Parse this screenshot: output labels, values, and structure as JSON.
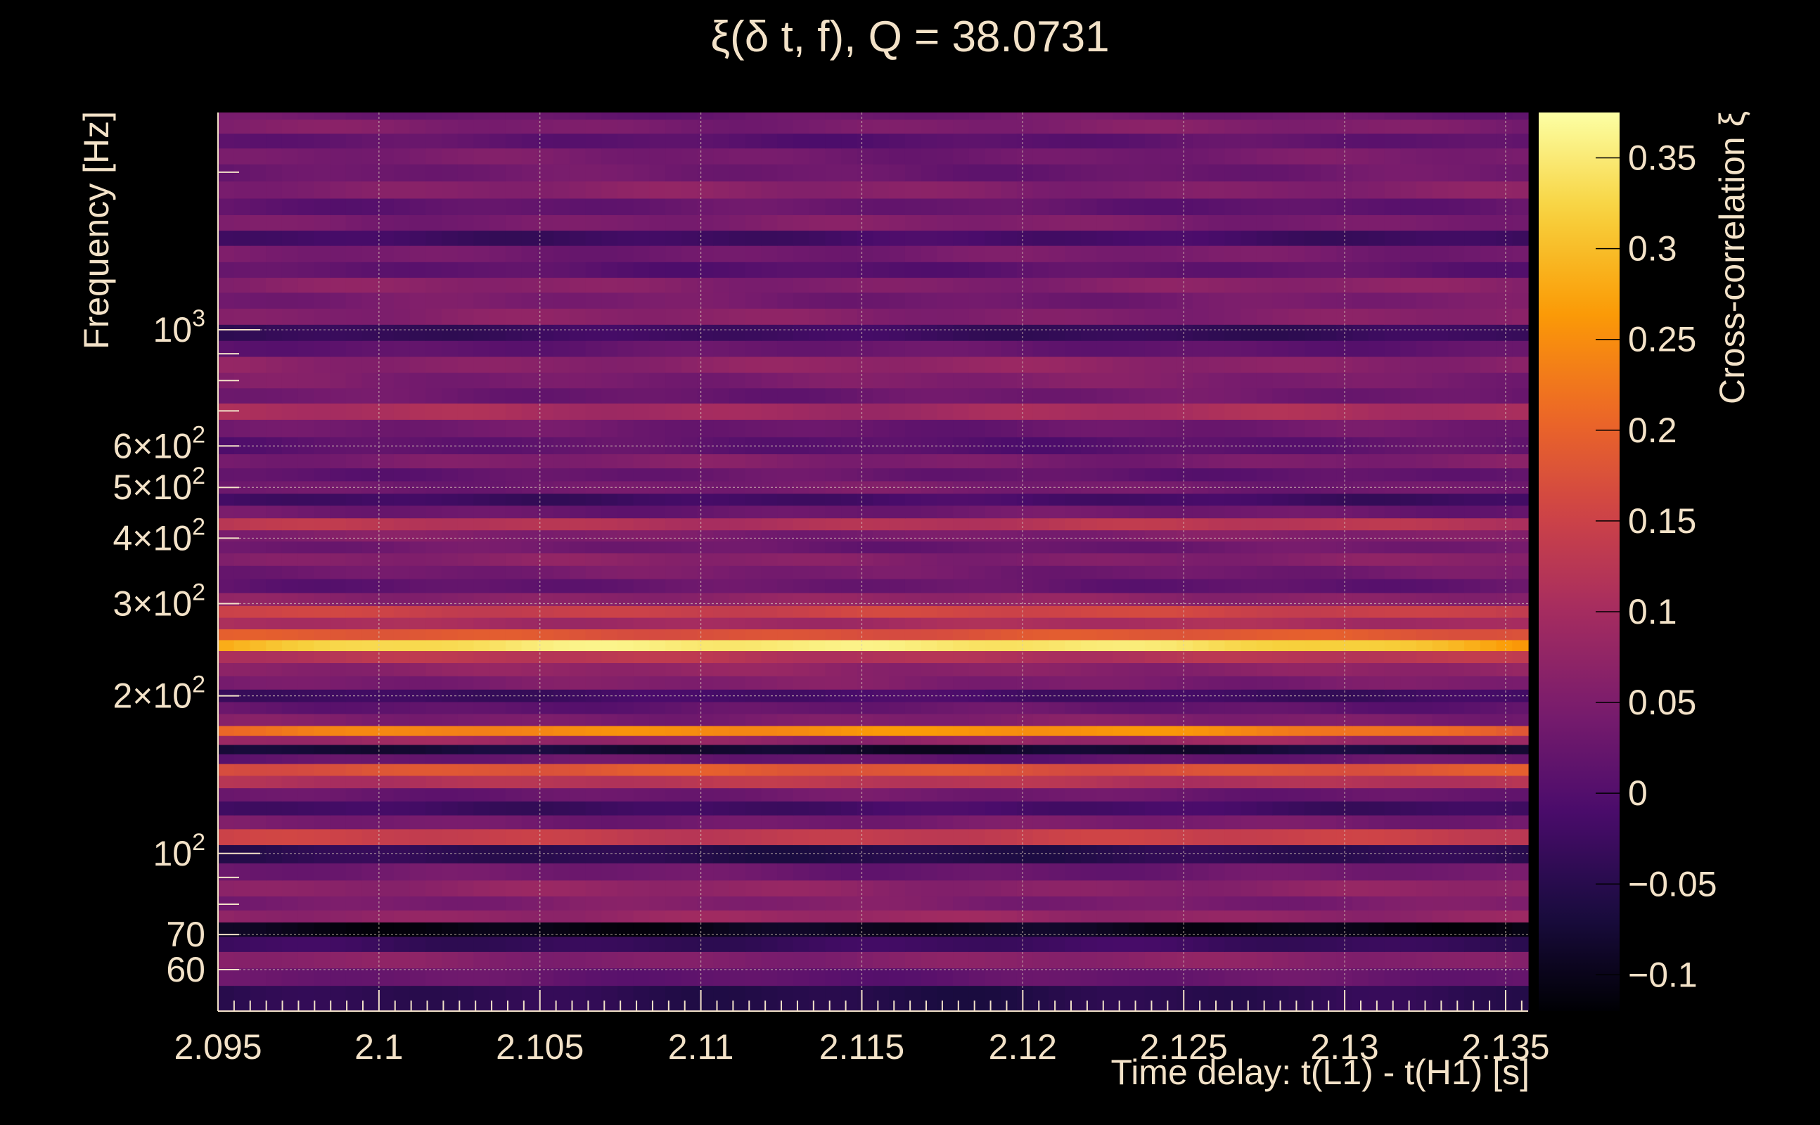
{
  "chart_data": {
    "type": "heatmap",
    "title": "ξ(δ t, f), Q = 38.0731",
    "xlabel": "Time delay: t(L1) - t(H1) [s]",
    "ylabel": "Frequency [Hz]",
    "colorbar_label": "Cross-correlation ξ",
    "xlim": [
      2.095,
      2.1357
    ],
    "ylim": [
      50,
      2600
    ],
    "y_scale": "log",
    "clim": [
      -0.12,
      0.375
    ],
    "x_ticks": [
      2.095,
      2.1,
      2.105,
      2.11,
      2.115,
      2.12,
      2.125,
      2.13,
      2.135
    ],
    "x_tick_labels": [
      "2.095",
      "2.1",
      "2.105",
      "2.11",
      "2.115",
      "2.12",
      "2.125",
      "2.13",
      "2.135"
    ],
    "y_ticks": [
      {
        "value": 60,
        "base": "60",
        "exp": ""
      },
      {
        "value": 70,
        "base": "70",
        "exp": ""
      },
      {
        "value": 100,
        "base": "10",
        "exp": "2"
      },
      {
        "value": 200,
        "base": "2×10",
        "exp": "2"
      },
      {
        "value": 300,
        "base": "3×10",
        "exp": "2"
      },
      {
        "value": 400,
        "base": "4×10",
        "exp": "2"
      },
      {
        "value": 500,
        "base": "5×10",
        "exp": "2"
      },
      {
        "value": 600,
        "base": "6×10",
        "exp": "2"
      },
      {
        "value": 1000,
        "base": "10",
        "exp": "3"
      }
    ],
    "colorbar_ticks": [
      -0.1,
      -0.05,
      0,
      0.05,
      0.1,
      0.15,
      0.2,
      0.25,
      0.3,
      0.35
    ],
    "colorbar_tick_labels": [
      "−0.1",
      "−0.05",
      "0",
      "0.05",
      "0.1",
      "0.15",
      "0.2",
      "0.25",
      "0.3",
      "0.35"
    ],
    "colormap": [
      "#000004",
      "#1b0c41",
      "#4a0c6b",
      "#781c6d",
      "#a52c60",
      "#cf4446",
      "#ed6925",
      "#fb9b06",
      "#f7d13d",
      "#fcffa4"
    ],
    "grid": true,
    "bands": [
      {
        "f": 54,
        "v": -0.05
      },
      {
        "f": 58,
        "v": 0.02
      },
      {
        "f": 63,
        "v": 0.06
      },
      {
        "f": 67,
        "v": -0.03
      },
      {
        "f": 72,
        "v": -0.1
      },
      {
        "f": 76,
        "v": 0.08
      },
      {
        "f": 80,
        "v": 0.05
      },
      {
        "f": 86,
        "v": 0.07
      },
      {
        "f": 92,
        "v": 0.03
      },
      {
        "f": 100,
        "v": -0.05
      },
      {
        "f": 108,
        "v": 0.14
      },
      {
        "f": 115,
        "v": 0.04
      },
      {
        "f": 122,
        "v": -0.02
      },
      {
        "f": 130,
        "v": 0.03
      },
      {
        "f": 137,
        "v": 0.12
      },
      {
        "f": 145,
        "v": 0.18
      },
      {
        "f": 152,
        "v": 0.02
      },
      {
        "f": 158,
        "v": -0.08
      },
      {
        "f": 165,
        "v": 0.08
      },
      {
        "f": 171,
        "v": 0.26
      },
      {
        "f": 180,
        "v": 0.05
      },
      {
        "f": 190,
        "v": 0.02
      },
      {
        "f": 200,
        "v": -0.02
      },
      {
        "f": 212,
        "v": 0.05
      },
      {
        "f": 225,
        "v": 0.07
      },
      {
        "f": 238,
        "v": 0.12
      },
      {
        "f": 250,
        "v": 0.36
      },
      {
        "f": 262,
        "v": 0.18
      },
      {
        "f": 275,
        "v": 0.1
      },
      {
        "f": 290,
        "v": 0.15
      },
      {
        "f": 305,
        "v": 0.07
      },
      {
        "f": 325,
        "v": 0.02
      },
      {
        "f": 345,
        "v": 0.04
      },
      {
        "f": 365,
        "v": 0.06
      },
      {
        "f": 385,
        "v": 0.03
      },
      {
        "f": 405,
        "v": 0.05
      },
      {
        "f": 425,
        "v": 0.12
      },
      {
        "f": 450,
        "v": 0.03
      },
      {
        "f": 475,
        "v": -0.02
      },
      {
        "f": 500,
        "v": 0.04
      },
      {
        "f": 530,
        "v": 0.02
      },
      {
        "f": 560,
        "v": 0.05
      },
      {
        "f": 600,
        "v": 0.01
      },
      {
        "f": 650,
        "v": 0.03
      },
      {
        "f": 700,
        "v": 0.1
      },
      {
        "f": 750,
        "v": 0.03
      },
      {
        "f": 800,
        "v": 0.05
      },
      {
        "f": 860,
        "v": 0.07
      },
      {
        "f": 920,
        "v": 0.02
      },
      {
        "f": 990,
        "v": -0.03
      },
      {
        "f": 1060,
        "v": 0.06
      },
      {
        "f": 1140,
        "v": 0.04
      },
      {
        "f": 1220,
        "v": 0.06
      },
      {
        "f": 1300,
        "v": 0.01
      },
      {
        "f": 1400,
        "v": 0.04
      },
      {
        "f": 1500,
        "v": -0.02
      },
      {
        "f": 1600,
        "v": 0.05
      },
      {
        "f": 1720,
        "v": 0.02
      },
      {
        "f": 1850,
        "v": 0.06
      },
      {
        "f": 2000,
        "v": 0.03
      },
      {
        "f": 2150,
        "v": 0.04
      },
      {
        "f": 2300,
        "v": 0.01
      },
      {
        "f": 2450,
        "v": 0.05
      },
      {
        "f": 2600,
        "v": 0.03
      }
    ]
  }
}
